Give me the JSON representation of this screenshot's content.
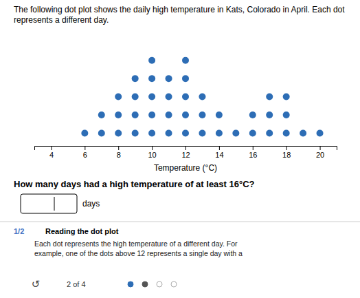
{
  "chart_data": {
    "type": "dot",
    "title": "The following dot plot shows the daily high temperature in Kats, Colorado in April. Each dot represents a different day.",
    "x_label": "Temperature (°C)",
    "x": [
      6,
      7,
      8,
      9,
      10,
      11,
      12,
      13,
      14,
      15,
      16,
      17,
      18,
      19,
      20
    ],
    "values": [
      1,
      2,
      3,
      4,
      5,
      4,
      5,
      3,
      2,
      1,
      2,
      3,
      3,
      1,
      1
    ],
    "color": "#2D6DB5",
    "xlim": [
      3,
      21
    ],
    "xticks": [
      4,
      6,
      8,
      10,
      12,
      14,
      16,
      18,
      20
    ],
    "ylim": [
      0.3,
      6.5
    ],
    "tick_labels": "x",
    "grid": false,
    "annotations": [
      "How many days had a high temperature of at least 16°C?",
      "days",
      "1/2",
      "Reading the dot plot",
      "Each dot represents the high temperature of a different day. For",
      "example, one of the dots above 12 represents a single day with a",
      "↺",
      "2 of 4"
    ]
  }
}
